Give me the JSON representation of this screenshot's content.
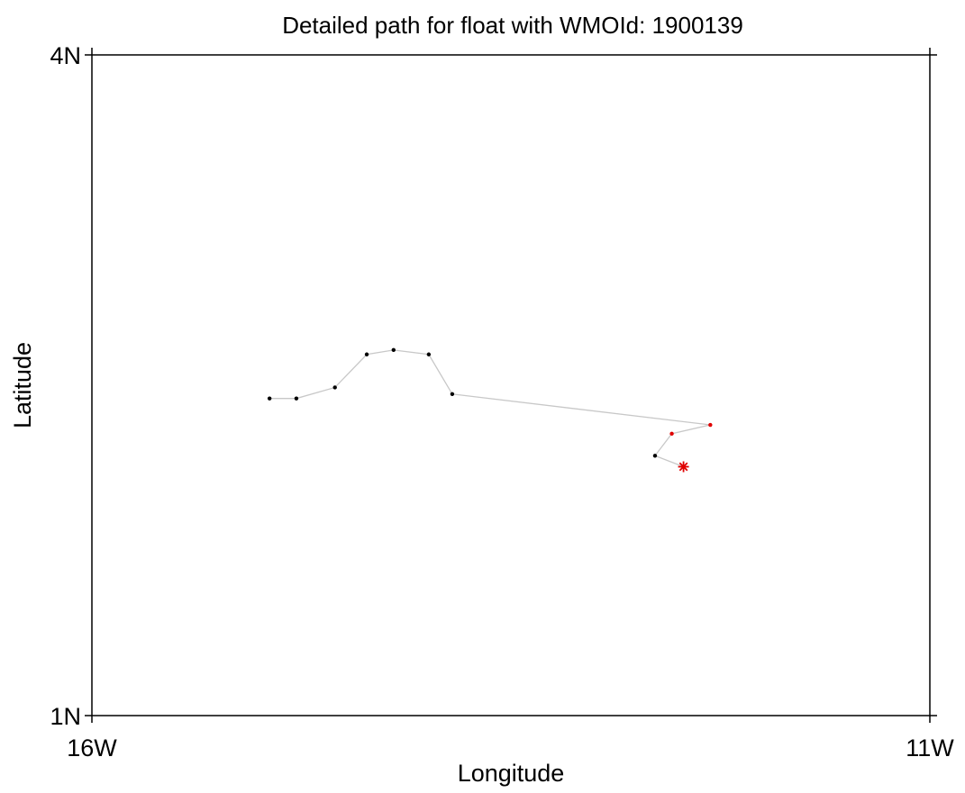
{
  "chart_data": {
    "type": "line",
    "title": "Detailed path for float with WMOId: 1900139",
    "xlabel": "Longitude",
    "ylabel": "Latitude",
    "xlim": [
      -16,
      -11
    ],
    "ylim": [
      1,
      4
    ],
    "x_ticks": [
      {
        "value": -16,
        "label": "16W"
      },
      {
        "value": -11,
        "label": "11W"
      }
    ],
    "y_ticks": [
      {
        "value": 1,
        "label": "1N"
      },
      {
        "value": 4,
        "label": "4N"
      }
    ],
    "grid": false,
    "colors": {
      "path_line": "#c8c8c8",
      "point_default": "#000000",
      "point_highlight": "#e00000",
      "last_position_marker": "#e00000"
    },
    "series": [
      {
        "points": [
          {
            "x": -14.94,
            "y": 2.44,
            "highlight": false
          },
          {
            "x": -14.78,
            "y": 2.44,
            "highlight": false
          },
          {
            "x": -14.55,
            "y": 2.49,
            "highlight": false
          },
          {
            "x": -14.36,
            "y": 2.64,
            "highlight": false
          },
          {
            "x": -14.2,
            "y": 2.66,
            "highlight": false
          },
          {
            "x": -13.99,
            "y": 2.64,
            "highlight": false
          },
          {
            "x": -13.85,
            "y": 2.46,
            "highlight": false
          },
          {
            "x": -12.31,
            "y": 2.32,
            "highlight": true
          },
          {
            "x": -12.54,
            "y": 2.28,
            "highlight": true
          },
          {
            "x": -12.64,
            "y": 2.18,
            "highlight": false
          },
          {
            "x": -12.47,
            "y": 2.13,
            "highlight": false,
            "marker": "asterisk"
          }
        ]
      }
    ]
  }
}
